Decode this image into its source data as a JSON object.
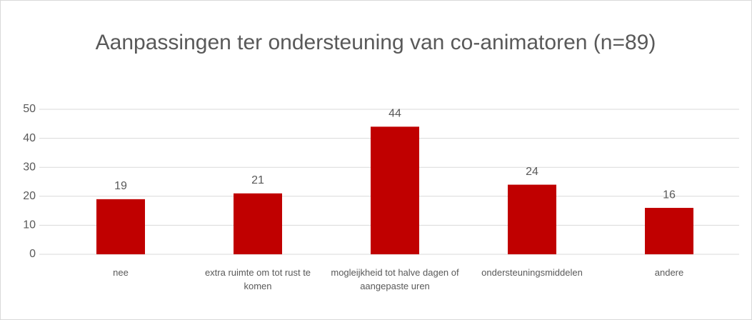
{
  "chart_data": {
    "type": "bar",
    "title": "Aanpassingen ter ondersteuning van co-animatoren (n=89)",
    "categories": [
      "nee",
      "extra ruimte om tot rust te komen",
      "mogleijkheid tot halve dagen of aangepaste uren",
      "ondersteuningsmiddelen",
      "andere"
    ],
    "values": [
      19,
      21,
      44,
      24,
      16
    ],
    "color": "#c00000",
    "ylim": [
      0,
      50
    ],
    "yticks": [
      0,
      10,
      20,
      30,
      40,
      50
    ],
    "grid": true
  }
}
